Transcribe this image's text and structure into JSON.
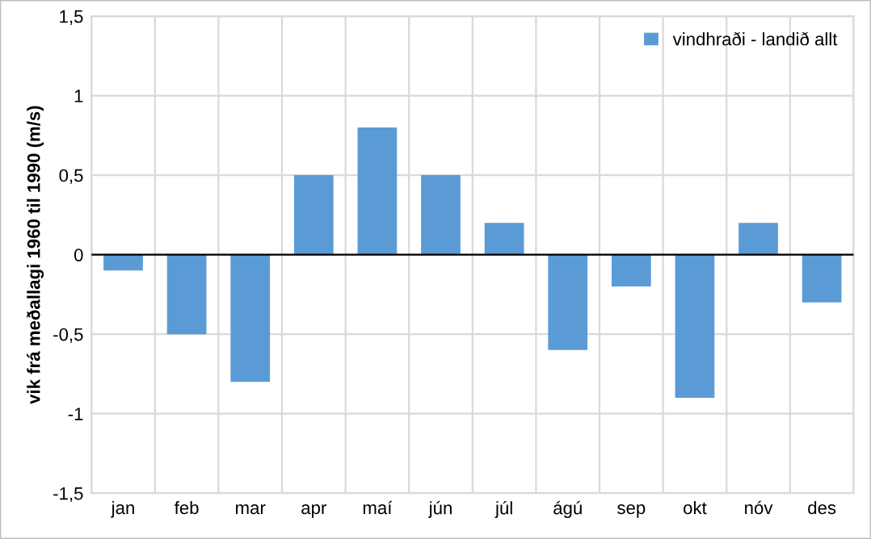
{
  "chart_data": {
    "type": "bar",
    "ylabel": "vik frá meðallagi 1960 til 1990 (m/s)",
    "categories": [
      "jan",
      "feb",
      "mar",
      "apr",
      "maí",
      "jún",
      "júl",
      "ágú",
      "sep",
      "okt",
      "nóv",
      "des"
    ],
    "series": [
      {
        "name": "vindhraði - landið allt",
        "color": "#5b9bd5",
        "values": [
          -0.1,
          -0.5,
          -0.8,
          0.5,
          0.8,
          0.5,
          0.2,
          -0.6,
          -0.2,
          -0.9,
          0.2,
          -0.3
        ]
      }
    ],
    "ylim": [
      -1.5,
      1.5
    ],
    "yticks": [
      {
        "value": -1.5,
        "label": "-1,5"
      },
      {
        "value": -1,
        "label": "-1"
      },
      {
        "value": -0.5,
        "label": "-0,5"
      },
      {
        "value": 0,
        "label": "0"
      },
      {
        "value": 0.5,
        "label": "0,5"
      },
      {
        "value": 1,
        "label": "1"
      },
      {
        "value": 1.5,
        "label": "1,5"
      }
    ],
    "grid": true,
    "legend": "top right"
  }
}
